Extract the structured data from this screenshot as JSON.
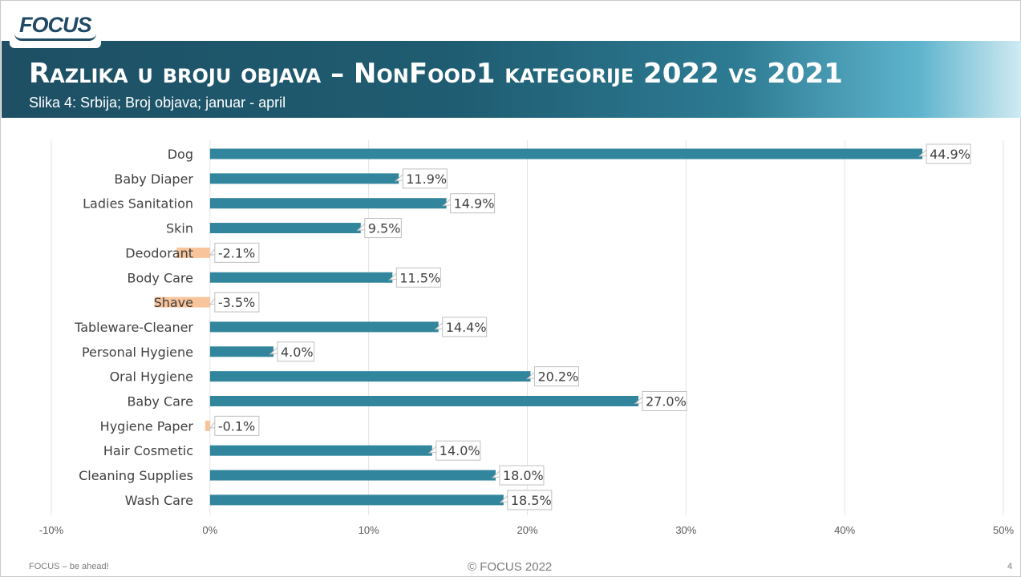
{
  "logo": {
    "text": "FOCUS"
  },
  "header": {
    "title": "Razlika u broju objava – NonFood1 kategorije 2022  vs  2021",
    "subtitle": "Slika 4: Srbija; Broj objava; januar - april"
  },
  "footer": {
    "left": "FOCUS – be ahead!",
    "center": "© FOCUS 2022",
    "page_number": "4"
  },
  "colors": {
    "positive_bar": "#31859c",
    "negative_bar": "#f7c49b",
    "banner_dark": "#1e4f64",
    "banner_light": "#cfeaf2"
  },
  "chart_data": {
    "type": "bar",
    "orientation": "horizontal",
    "categories": [
      "Dog",
      "Baby Diaper",
      "Ladies Sanitation",
      "Skin",
      "Deodorant",
      "Body Care",
      "Shave",
      "Tableware-Cleaner",
      "Personal Hygiene",
      "Oral Hygiene",
      "Baby Care",
      "Hygiene Paper",
      "Hair Cosmetic",
      "Cleaning Supplies",
      "Wash Care"
    ],
    "values": [
      44.9,
      11.9,
      14.9,
      9.5,
      -2.1,
      11.5,
      -3.5,
      14.4,
      4.0,
      20.2,
      27.0,
      -0.1,
      14.0,
      18.0,
      18.5
    ],
    "data_labels": [
      "44.9%",
      "11.9%",
      "14.9%",
      "9.5%",
      "-2.1%",
      "11.5%",
      "-3.5%",
      "14.4%",
      "4.0%",
      "20.2%",
      "27.0%",
      "-0.1%",
      "14.0%",
      "18.0%",
      "18.5%"
    ],
    "xlim": [
      -10,
      50
    ],
    "x_ticks": [
      -10,
      0,
      10,
      20,
      30,
      40,
      50
    ],
    "x_tick_labels": [
      "-10%",
      "0%",
      "10%",
      "20%",
      "30%",
      "40%",
      "50%"
    ],
    "grid": true,
    "legend": "none"
  }
}
